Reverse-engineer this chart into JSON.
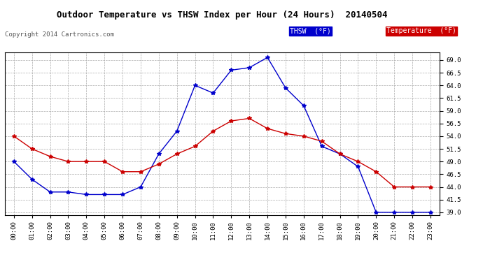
{
  "title": "Outdoor Temperature vs THSW Index per Hour (24 Hours)  20140504",
  "copyright": "Copyright 2014 Cartronics.com",
  "hours": [
    "00:00",
    "01:00",
    "02:00",
    "03:00",
    "04:00",
    "05:00",
    "06:00",
    "07:00",
    "08:00",
    "09:00",
    "10:00",
    "11:00",
    "12:00",
    "13:00",
    "14:00",
    "15:00",
    "16:00",
    "17:00",
    "18:00",
    "19:00",
    "20:00",
    "21:00",
    "22:00",
    "23:00"
  ],
  "thsw": [
    49.0,
    45.5,
    43.0,
    43.0,
    42.5,
    42.5,
    42.5,
    44.0,
    50.5,
    55.0,
    64.0,
    62.5,
    67.0,
    67.5,
    69.5,
    63.5,
    60.0,
    52.0,
    50.5,
    48.0,
    39.0,
    39.0,
    39.0,
    39.0
  ],
  "temperature": [
    54.0,
    51.5,
    50.0,
    49.0,
    49.0,
    49.0,
    47.0,
    47.0,
    48.5,
    50.5,
    52.0,
    55.0,
    57.0,
    57.5,
    55.5,
    54.5,
    54.0,
    53.0,
    50.5,
    49.0,
    47.0,
    44.0,
    44.0,
    44.0
  ],
  "thsw_color": "#0000cc",
  "temp_color": "#cc0000",
  "bg_color": "#ffffff",
  "grid_color": "#aaaaaa",
  "ylim_min": 38.5,
  "ylim_max": 70.5,
  "yticks": [
    39.0,
    41.5,
    44.0,
    46.5,
    49.0,
    51.5,
    54.0,
    56.5,
    59.0,
    61.5,
    64.0,
    66.5,
    69.0
  ],
  "legend_thsw_label": "THSW  (°F)",
  "legend_temp_label": "Temperature  (°F)"
}
